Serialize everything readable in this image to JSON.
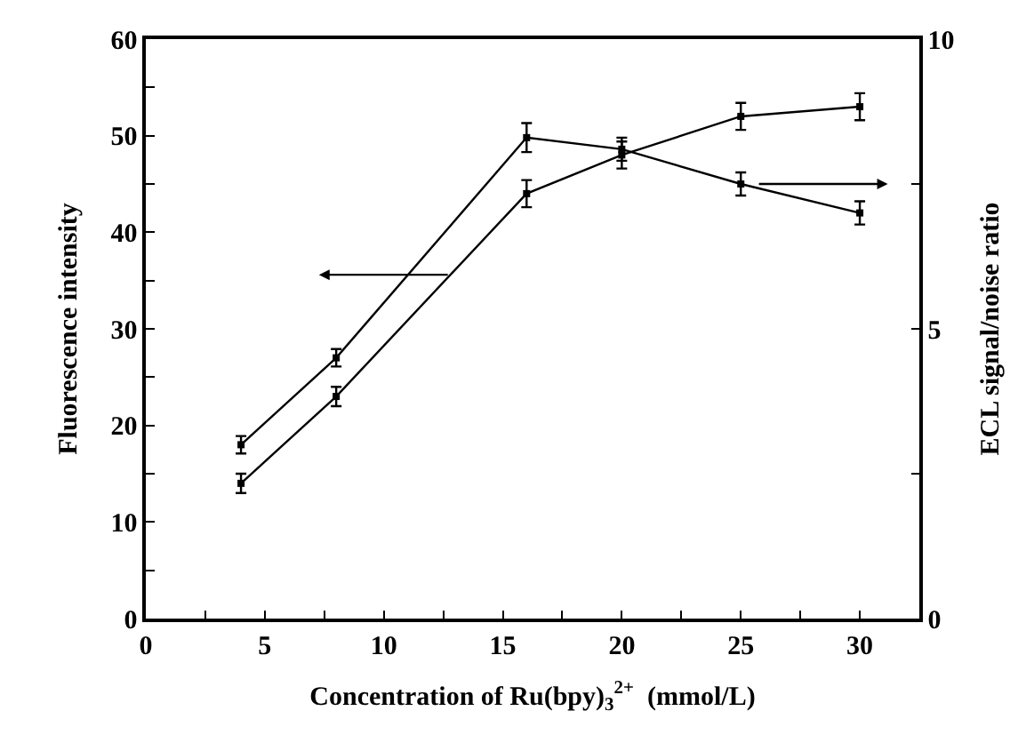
{
  "chart_data": {
    "type": "line",
    "xlabel": "Concentration of Ru(bpy)$_{3}$$^{2+}$  (mmol/L)",
    "ylabel": "Fluorescence intensity",
    "y2label": "ECL signal/noise ratio",
    "x": [
      4,
      8,
      16,
      20,
      25,
      30
    ],
    "series": [
      {
        "color": "#000000",
        "values": [
          14,
          23,
          44,
          48,
          52,
          53
        ],
        "errors": [
          1,
          1,
          1.4,
          1.4,
          1.4,
          1.4
        ]
      },
      {
        "color": "#000000",
        "axis": "y2",
        "values": [
          3.0,
          4.5,
          8.3,
          8.1,
          7.5,
          7.0
        ],
        "errors": [
          0.15,
          0.15,
          0.25,
          0.2,
          0.2,
          0.2
        ]
      }
    ],
    "xlim": [
      0,
      32.5
    ],
    "xticks": [
      0,
      {
        "value": 2.5,
        "label": null
      },
      5,
      {
        "value": 7.5,
        "label": null
      },
      10,
      {
        "value": 12.5,
        "label": null
      },
      15,
      {
        "value": 17.5,
        "label": null
      },
      20,
      {
        "value": 22.5,
        "label": null
      },
      25,
      {
        "value": 27.5,
        "label": null
      },
      30
    ],
    "ylim": [
      0,
      60
    ],
    "yticks": [
      0,
      {
        "value": 5,
        "label": null
      },
      10,
      {
        "value": 15,
        "label": null
      },
      20,
      {
        "value": 25,
        "label": null
      },
      30,
      {
        "value": 35,
        "label": null
      },
      40,
      {
        "value": 45,
        "label": null
      },
      50,
      {
        "value": 55,
        "label": null
      },
      60
    ],
    "y2lim": [
      0,
      10
    ],
    "y2ticks": [
      0,
      {
        "value": 2.5,
        "label": null
      },
      5,
      {
        "value": 7.5,
        "label": null
      },
      10
    ],
    "marker": "square",
    "line_style": "solid"
  }
}
